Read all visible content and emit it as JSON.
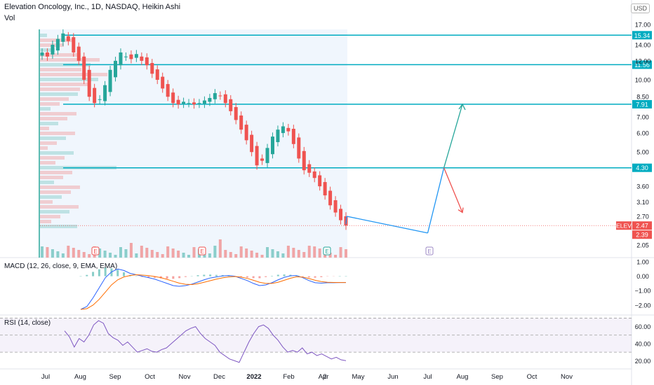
{
  "header": {
    "title": "Elevation Oncology, Inc., 1D, NASDAQ, Heikin Ashi",
    "volume_label": "Vol",
    "currency": "USD"
  },
  "colors": {
    "up": "#26a69a",
    "down": "#ef5350",
    "level_line": "#00acc1",
    "projection_blue": "#2196f3",
    "macd_line": "#2962ff",
    "signal_line": "#ff6d00",
    "rsi_line": "#7e57c2",
    "price_tag_red": "#ef5350"
  },
  "chart_data": [
    {
      "type": "candlestick",
      "price_axis_ticks": [
        "17.00",
        "14.00",
        "12.00",
        "10.00",
        "8.50",
        "7.00",
        "6.00",
        "5.00",
        "4.30",
        "3.60",
        "3.10",
        "2.70",
        "2.05"
      ],
      "x_axis_ticks": [
        "Jul",
        "Aug",
        "Sep",
        "Oct",
        "Nov",
        "Dec",
        "2022",
        "Feb",
        "2",
        "Apr",
        "May",
        "Jun",
        "Jul",
        "Aug",
        "Sep",
        "Oct",
        "Nov"
      ],
      "horizontal_levels": [
        {
          "label": "15.34",
          "value": 15.34
        },
        {
          "label": "11.56",
          "value": 11.56
        },
        {
          "label": "7.91",
          "value": 7.91
        },
        {
          "label": "4.30",
          "value": 4.3
        }
      ],
      "price_tags": [
        {
          "label": "ELEV",
          "value": "2.47"
        },
        {
          "value": "2.39"
        }
      ],
      "earnings_markers": [
        "E",
        "E",
        "E",
        "E"
      ],
      "path_closes": [
        13,
        12.5,
        14,
        14.8,
        15.6,
        14.5,
        13,
        12,
        10,
        8.5,
        8.0,
        8.3,
        9.5,
        11,
        12,
        13,
        12.5,
        12.2,
        12.8,
        12.0,
        11.5,
        10.6,
        10.0,
        9.2,
        8.5,
        8.0,
        7.9,
        8.1,
        8.0,
        7.9,
        8.0,
        8.2,
        8.4,
        8.8,
        8.6,
        8.0,
        7.4,
        6.8,
        6.2,
        5.6,
        5.0,
        4.4,
        4.6,
        5.2,
        5.8,
        6.2,
        6.4,
        6.1,
        5.4,
        4.7,
        4.2,
        4.1,
        3.9,
        3.6,
        3.3,
        3.0,
        2.8,
        2.6,
        2.47
      ],
      "projection_points": [
        {
          "date": "Mar 21",
          "value": 2.7
        },
        {
          "date": "Jun 1",
          "value": 2.3
        },
        {
          "date": "Jun 15",
          "value": 4.3
        },
        {
          "date": "Jul 1",
          "value": 7.91
        },
        {
          "date": "Jul 1",
          "value": 2.8
        }
      ]
    },
    {
      "type": "line",
      "title": "MACD (12, 26, close, 9, EMA, EMA)",
      "ylim": [
        -2.3,
        1.0
      ],
      "y_ticks": [
        "1.00",
        "0.00",
        "−1.00",
        "−2.00"
      ],
      "macd": [
        -2.3,
        -2.1,
        -1.5,
        -0.8,
        -0.1,
        0.3,
        0.5,
        0.4,
        0.2,
        0.1,
        0.0,
        -0.1,
        -0.2,
        -0.35,
        -0.5,
        -0.65,
        -0.7,
        -0.65,
        -0.55,
        -0.4,
        -0.25,
        -0.12,
        -0.05,
        0.02,
        0.05,
        0.0,
        -0.15,
        -0.3,
        -0.5,
        -0.65,
        -0.6,
        -0.45,
        -0.25,
        -0.08,
        0.03,
        0.05,
        -0.1,
        -0.3,
        -0.45,
        -0.48,
        -0.45,
        -0.45,
        -0.44,
        -0.44
      ],
      "signal": [
        -2.3,
        -2.25,
        -2.0,
        -1.6,
        -1.1,
        -0.6,
        -0.25,
        -0.05,
        0.05,
        0.1,
        0.08,
        0.04,
        -0.02,
        -0.1,
        -0.22,
        -0.35,
        -0.48,
        -0.56,
        -0.58,
        -0.52,
        -0.42,
        -0.31,
        -0.2,
        -0.11,
        -0.05,
        -0.02,
        -0.06,
        -0.15,
        -0.28,
        -0.42,
        -0.5,
        -0.5,
        -0.42,
        -0.28,
        -0.14,
        -0.04,
        -0.06,
        -0.16,
        -0.28,
        -0.37,
        -0.42,
        -0.43,
        -0.44,
        -0.44
      ]
    },
    {
      "type": "line",
      "title": "RSI (14, close)",
      "ylim": [
        12,
        72
      ],
      "y_ticks": [
        "60.00",
        "40.00",
        "20.00"
      ],
      "bands": [
        70,
        50,
        30
      ],
      "values": [
        55,
        48,
        36,
        46,
        42,
        50,
        62,
        67,
        64,
        52,
        47,
        44,
        38,
        42,
        36,
        30,
        32,
        34,
        31,
        30,
        33,
        35,
        40,
        45,
        50,
        55,
        58,
        60,
        52,
        46,
        42,
        38,
        30,
        26,
        22,
        20,
        18,
        30,
        42,
        52,
        60,
        62,
        58,
        50,
        44,
        36,
        30,
        32,
        30,
        35,
        28,
        30,
        26,
        28,
        25,
        22,
        24,
        21,
        20
      ]
    }
  ]
}
